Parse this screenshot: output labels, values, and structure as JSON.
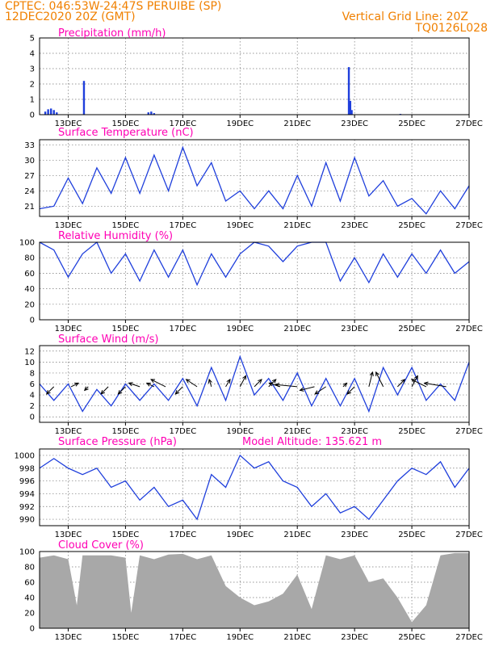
{
  "header": {
    "line1_left": "CPTEC:   046:53W-24:47S  PERUIBE (SP)",
    "line2_left": "12DEC2020 20Z (GMT)",
    "line1_right": "Vertical Grid Line: 20Z",
    "line2_right": "TQ0126L028",
    "model_altitude": "Model Altitude: 135.621 m"
  },
  "colors": {
    "header": "#f08000",
    "title": "#ff00b4",
    "series": "#1f3fdc",
    "cloud": "#a8a8a8"
  },
  "x_axis": {
    "tick_labels": [
      "13DEC",
      "15DEC",
      "17DEC",
      "19DEC",
      "21DEC",
      "23DEC",
      "25DEC",
      "27DEC"
    ],
    "range_days": [
      0,
      15
    ]
  },
  "chart_data": [
    {
      "type": "bar",
      "title": "Precipitation (mm/h)",
      "ylim": [
        0,
        5
      ],
      "yticks": [
        "0",
        "1",
        "2",
        "3",
        "4",
        "5"
      ],
      "grid": true,
      "x": [
        0.2,
        0.3,
        0.4,
        0.5,
        0.6,
        1.55,
        3.8,
        3.9,
        4.0,
        10.8,
        10.85,
        10.9,
        12.6
      ],
      "values": [
        0.2,
        0.35,
        0.4,
        0.3,
        0.15,
        2.2,
        0.15,
        0.2,
        0.1,
        3.1,
        0.9,
        0.3,
        0.05
      ]
    },
    {
      "type": "line",
      "title": "Surface Temperature (nC)",
      "ylim": [
        19,
        34
      ],
      "yticks": [
        "21",
        "24",
        "27",
        "30",
        "33"
      ],
      "grid": true,
      "x": [
        0,
        0.5,
        1,
        1.5,
        2,
        2.5,
        3,
        3.5,
        4,
        4.5,
        5,
        5.5,
        6,
        6.5,
        7,
        7.5,
        8,
        8.5,
        9,
        9.5,
        10,
        10.5,
        11,
        11.5,
        12,
        12.5,
        13,
        13.5,
        14,
        14.5,
        15
      ],
      "values": [
        20.5,
        21,
        26.5,
        21.5,
        28.5,
        23.5,
        30.5,
        23.5,
        31,
        24,
        32.5,
        25,
        29.5,
        22,
        24,
        20.5,
        24,
        20.5,
        27,
        21,
        29.5,
        22,
        30.5,
        23,
        26,
        21,
        22.5,
        19.5,
        24,
        20.5,
        25
      ]
    },
    {
      "type": "line",
      "title": "Relative Humidity (%)",
      "ylim": [
        0,
        100
      ],
      "yticks": [
        "0",
        "20",
        "40",
        "60",
        "80",
        "100"
      ],
      "grid": true,
      "x": [
        0,
        0.5,
        1,
        1.5,
        2,
        2.5,
        3,
        3.5,
        4,
        4.5,
        5,
        5.5,
        6,
        6.5,
        7,
        7.5,
        8,
        8.5,
        9,
        9.5,
        10,
        10.5,
        11,
        11.5,
        12,
        12.5,
        13,
        13.5,
        14,
        14.5,
        15
      ],
      "values": [
        100,
        90,
        55,
        85,
        100,
        60,
        85,
        50,
        90,
        55,
        90,
        45,
        85,
        55,
        85,
        100,
        95,
        75,
        95,
        100,
        100,
        50,
        80,
        48,
        85,
        55,
        85,
        60,
        90,
        60,
        75
      ]
    },
    {
      "type": "line",
      "title": "Surface Wind (m/s)",
      "ylim": [
        -1,
        13
      ],
      "yticks": [
        "0",
        "2",
        "4",
        "6",
        "8",
        "10",
        "12"
      ],
      "grid": true,
      "x": [
        0,
        0.5,
        1,
        1.5,
        2,
        2.5,
        3,
        3.5,
        4,
        4.5,
        5,
        5.5,
        6,
        6.5,
        7,
        7.5,
        8,
        8.5,
        9,
        9.5,
        10,
        10.5,
        11,
        11.5,
        12,
        12.5,
        13,
        13.5,
        14,
        14.5,
        15
      ],
      "values": [
        6,
        3,
        6,
        1,
        5,
        2,
        6,
        3,
        6,
        3,
        7,
        2,
        9,
        3,
        11,
        4,
        7,
        3,
        8,
        2,
        7,
        2,
        7,
        1,
        9,
        4,
        9,
        3,
        6,
        3,
        10
      ]
    },
    {
      "type": "line",
      "title": "Surface Pressure (hPa)",
      "ylim": [
        989,
        1001
      ],
      "yticks": [
        "990",
        "992",
        "994",
        "996",
        "998",
        "1000"
      ],
      "grid": true,
      "x": [
        0,
        0.5,
        1,
        1.5,
        2,
        2.5,
        3,
        3.5,
        4,
        4.5,
        5,
        5.5,
        6,
        6.5,
        7,
        7.5,
        8,
        8.5,
        9,
        9.5,
        10,
        10.5,
        11,
        11.5,
        12,
        12.5,
        13,
        13.5,
        14,
        14.5,
        15
      ],
      "values": [
        998,
        999.5,
        998,
        997,
        998,
        995,
        996,
        993,
        995,
        992,
        993,
        990,
        997,
        995,
        1000,
        998,
        999,
        996,
        995,
        992,
        994,
        991,
        992,
        990,
        993,
        996,
        998,
        997,
        999,
        995,
        998
      ]
    },
    {
      "type": "area",
      "title": "Cloud Cover (%)",
      "ylim": [
        0,
        100
      ],
      "yticks": [
        "0",
        "20",
        "40",
        "60",
        "80",
        "100"
      ],
      "grid": true,
      "x": [
        0,
        0.5,
        1,
        1.3,
        1.5,
        2,
        2.5,
        3,
        3.2,
        3.5,
        4,
        4.5,
        5,
        5.5,
        6,
        6.5,
        7,
        7.5,
        8,
        8.5,
        9,
        9.5,
        10,
        10.5,
        11,
        11.5,
        12,
        12.5,
        13,
        13.5,
        14,
        14.5,
        15
      ],
      "values": [
        92,
        95,
        90,
        30,
        95,
        95,
        95,
        92,
        20,
        95,
        90,
        96,
        97,
        90,
        95,
        55,
        40,
        30,
        35,
        45,
        70,
        25,
        95,
        90,
        95,
        60,
        65,
        40,
        8,
        30,
        95,
        98,
        98
      ]
    }
  ],
  "wind_vectors": {
    "x": [
      0.5,
      1.1,
      1.7,
      2.4,
      3,
      3.5,
      4,
      4.4,
      5,
      5.5,
      6,
      6.5,
      7,
      7.5,
      8,
      8.4,
      9,
      9.6,
      10,
      10.6,
      11,
      11.5,
      12,
      12.5,
      13,
      13.5,
      14.2
    ],
    "u": [
      -1,
      1,
      -0.5,
      -1,
      -1,
      -1.5,
      -1,
      -2,
      -1,
      -1.5,
      -0.3,
      0.6,
      0.8,
      1,
      1,
      -1.5,
      -3,
      -2,
      -1.5,
      0.5,
      -1,
      0.5,
      -1,
      1,
      0.8,
      -2,
      -3
    ],
    "v": [
      -1,
      0.5,
      -0.5,
      -1,
      -1,
      0.5,
      0.5,
      1,
      -1,
      1,
      1,
      1,
      1.5,
      1,
      1,
      0.5,
      0.3,
      -0.5,
      -1,
      0.5,
      -1,
      2,
      2,
      1,
      1.5,
      1,
      0.5
    ]
  }
}
